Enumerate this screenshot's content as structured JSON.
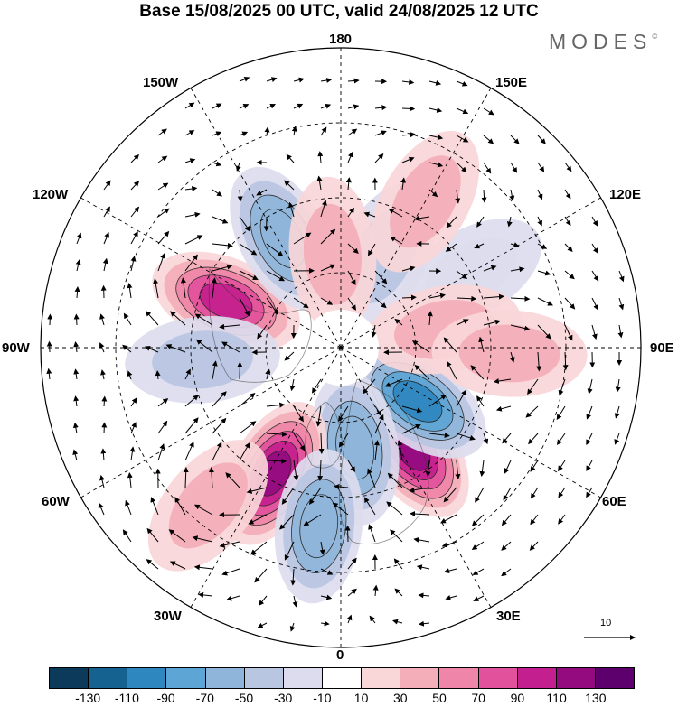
{
  "title": "Base 15/08/2025 00 UTC, valid 24/08/2025 12 UTC",
  "brand": "MODES",
  "brand_mark": "©",
  "longitude_labels": {
    "top": "180",
    "top_left": "150W",
    "top_right": "150E",
    "upper_left": "120W",
    "upper_right": "120E",
    "left": "90W",
    "right": "90E",
    "lower_left": "60W",
    "lower_right": "60E",
    "bottom_left": "30W",
    "bottom_right": "30E",
    "bottom": "0"
  },
  "reference_vector": {
    "label": "10"
  },
  "colorbar": {
    "colors": [
      "#0b3a5b",
      "#15618f",
      "#2f87c0",
      "#5da5d4",
      "#8fb6da",
      "#b9c6e2",
      "#dcdcee",
      "#ffffff",
      "#f9d6d8",
      "#f4aeb9",
      "#ef85a8",
      "#e2529c",
      "#c41f8e",
      "#940b7f",
      "#5d006e"
    ],
    "ticks": [
      "-130",
      "-110",
      "-90",
      "-70",
      "-50",
      "-30",
      "-10",
      "10",
      "30",
      "50",
      "70",
      "90",
      "110",
      "130"
    ]
  },
  "anomalies": [
    {
      "lon": 35,
      "colat": 33,
      "value": 120
    },
    {
      "lon": 55,
      "colat": 25,
      "value": -100
    },
    {
      "lon": 8,
      "colat": 27,
      "value": -70
    },
    {
      "lon": -28,
      "colat": 38,
      "value": 115
    },
    {
      "lon": -7,
      "colat": 48,
      "value": -70
    },
    {
      "lon": -112,
      "colat": 33,
      "value": 95
    },
    {
      "lon": -85,
      "colat": 37,
      "value": -45
    },
    {
      "lon": -152,
      "colat": 33,
      "value": -70
    },
    {
      "lon": 155,
      "colat": 27,
      "value": -45
    },
    {
      "lon": -175,
      "colat": 25,
      "value": 40
    },
    {
      "lon": 120,
      "colat": 40,
      "value": -30
    },
    {
      "lon": 100,
      "colat": 28,
      "value": 30
    },
    {
      "lon": 88,
      "colat": 45,
      "value": 45
    },
    {
      "lon": -40,
      "colat": 55,
      "value": 30
    },
    {
      "lon": 150,
      "colat": 45,
      "value": 30
    }
  ]
}
